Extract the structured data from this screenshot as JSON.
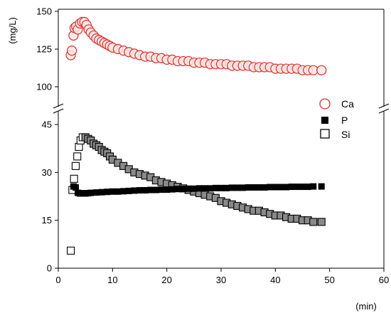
{
  "chart_data": {
    "type": "scatter",
    "xlabel": "(min)",
    "ylabel": "(mg/L)",
    "x_ticks": [
      0,
      10,
      20,
      30,
      40,
      50,
      60
    ],
    "upper_ticks": [
      100,
      125,
      150
    ],
    "lower_ticks": [
      0,
      15,
      30,
      45
    ],
    "xlim": [
      0,
      60
    ],
    "ylim_upper": [
      100,
      150
    ],
    "ylim_lower": [
      0,
      45
    ],
    "axis_break": true,
    "grid": false,
    "legend_position": "right",
    "series": [
      {
        "name": "Ca",
        "marker": "open-circle",
        "color": "#d9302c",
        "x": [
          2.3,
          2.5,
          2.8,
          3.0,
          3.3,
          3.6,
          4.0,
          4.4,
          4.8,
          5.2,
          5.6,
          6.0,
          6.5,
          7.0,
          7.5,
          8.0,
          8.5,
          9.0,
          9.5,
          10.0,
          11,
          12,
          13,
          14,
          15,
          16,
          17,
          18,
          19,
          20,
          21,
          22,
          23,
          24,
          25,
          26,
          27,
          28,
          29,
          30,
          31,
          32,
          33,
          34,
          35,
          36,
          37,
          38,
          39,
          40,
          41,
          42,
          43,
          44,
          45,
          46,
          47,
          48.5
        ],
        "y": [
          121,
          124,
          134,
          139,
          140,
          138,
          142,
          143,
          143,
          141,
          138,
          136,
          134,
          132,
          131,
          130,
          129,
          128,
          127,
          126,
          125,
          124,
          123,
          122,
          121,
          120,
          120,
          119,
          119,
          118,
          118,
          117,
          117,
          117,
          116,
          116,
          116,
          115,
          115,
          115,
          115,
          114,
          114,
          114,
          114,
          113,
          113,
          113,
          113,
          112,
          112,
          112,
          112,
          112,
          111,
          111,
          111,
          111
        ]
      },
      {
        "name": "P",
        "marker": "filled-square",
        "color": "#000000",
        "x": [
          2.8,
          3.2,
          3.6,
          4.0,
          4.5,
          5.0,
          5.5,
          6,
          7,
          8,
          9,
          10,
          11,
          12,
          13,
          14,
          15,
          16,
          17,
          18,
          19,
          20,
          21,
          22,
          23,
          24,
          25,
          26,
          27,
          28,
          29,
          30,
          31,
          32,
          33,
          34,
          35,
          36,
          37,
          38,
          39,
          40,
          41,
          42,
          43,
          44,
          45,
          46,
          47,
          48.5
        ],
        "y": [
          25.6,
          25.3,
          23.6,
          23.4,
          23.5,
          23.4,
          23.5,
          23.6,
          23.7,
          23.8,
          23.9,
          24.0,
          24.0,
          24.1,
          24.2,
          24.3,
          24.4,
          24.4,
          24.5,
          24.5,
          24.6,
          24.6,
          24.7,
          24.8,
          24.8,
          24.9,
          24.9,
          25.0,
          25.0,
          25.0,
          25.1,
          25.1,
          25.1,
          25.2,
          25.2,
          25.2,
          25.3,
          25.3,
          25.3,
          25.3,
          25.4,
          25.4,
          25.4,
          25.4,
          25.5,
          25.5,
          25.5,
          25.5,
          25.6,
          25.6
        ]
      },
      {
        "name": "Si",
        "marker": "open-square",
        "color": "#000000",
        "x": [
          2.3,
          2.6,
          2.9,
          3.2,
          3.5,
          3.8,
          4.1,
          4.5,
          5.0,
          5.5,
          6,
          6.5,
          7,
          7.5,
          8,
          8.5,
          9,
          9.5,
          10,
          11,
          12,
          13,
          14,
          15,
          16,
          17,
          18,
          19,
          20,
          21,
          22,
          23,
          24,
          25,
          26,
          27,
          28,
          29,
          30,
          31,
          32,
          33,
          34,
          35,
          36,
          37,
          38,
          39,
          40,
          41,
          42,
          43,
          44,
          45,
          46,
          47,
          48.5
        ],
        "y": [
          5.5,
          24.5,
          28,
          32,
          35,
          38,
          40,
          41,
          41,
          40.5,
          40,
          39,
          38.5,
          38,
          37,
          36.5,
          36,
          35,
          34,
          33,
          32,
          31,
          30,
          29.5,
          29,
          28.5,
          27.5,
          27,
          26.5,
          26,
          25.5,
          25,
          24.5,
          24,
          23.5,
          23,
          22.5,
          22,
          21,
          20.5,
          20,
          19.5,
          19,
          18.5,
          18,
          18,
          17.5,
          17,
          16.5,
          16.5,
          16,
          15.5,
          15.5,
          15,
          15,
          14.5,
          14.5
        ]
      }
    ]
  }
}
